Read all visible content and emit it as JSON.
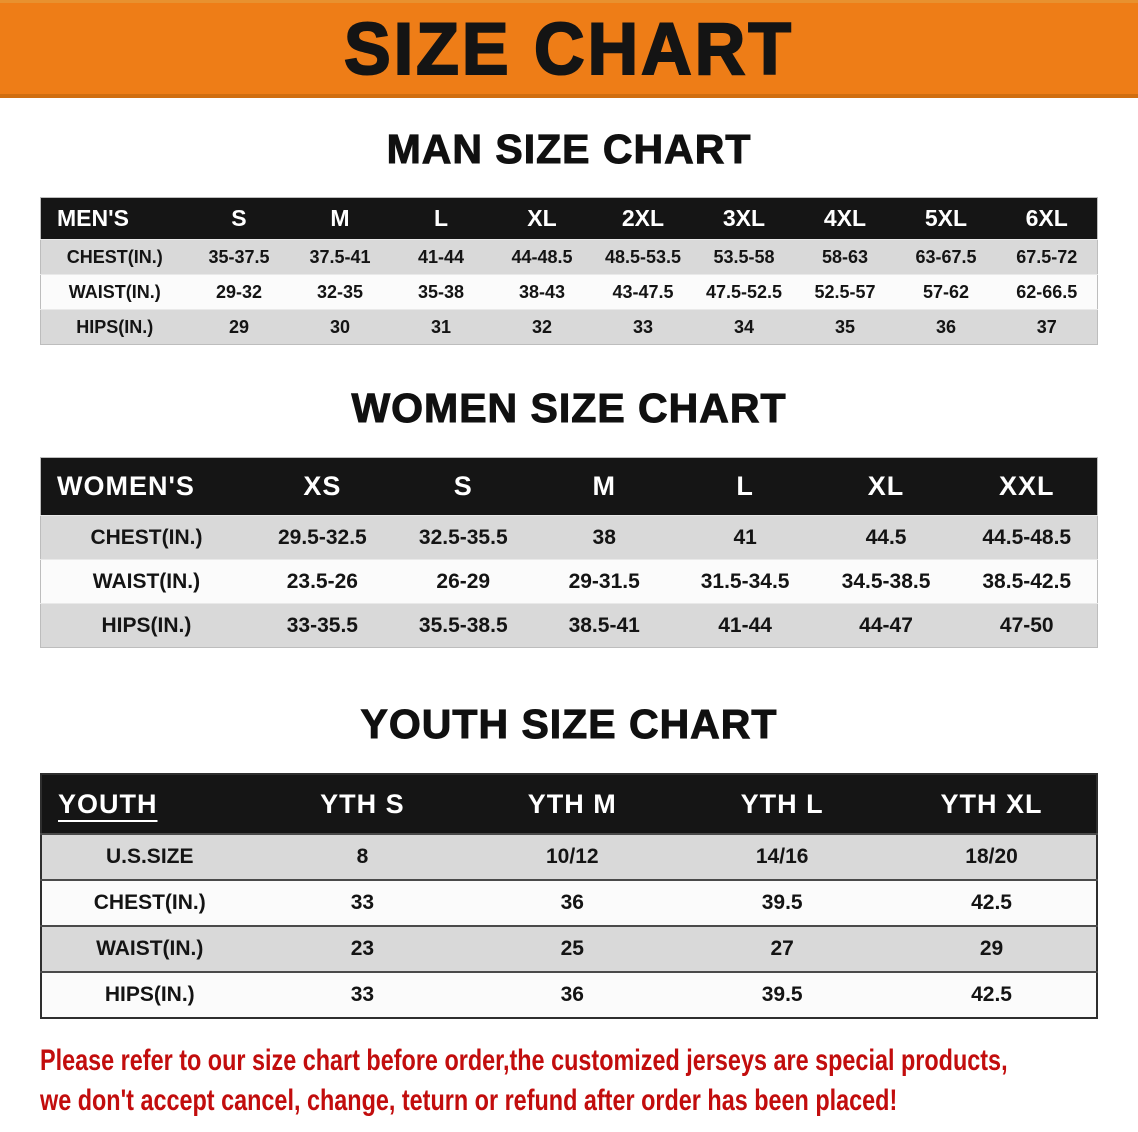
{
  "banner": {
    "title": "SIZE CHART",
    "background_color": "#ee7d17"
  },
  "sections": [
    {
      "heading": "MAN SIZE CHART",
      "table": {
        "header": [
          "MEN'S",
          "S",
          "M",
          "L",
          "XL",
          "2XL",
          "3XL",
          "4XL",
          "5XL",
          "6XL"
        ],
        "rows": [
          [
            "CHEST(IN.)",
            "35-37.5",
            "37.5-41",
            "41-44",
            "44-48.5",
            "48.5-53.5",
            "53.5-58",
            "58-63",
            "63-67.5",
            "67.5-72"
          ],
          [
            "WAIST(IN.)",
            "29-32",
            "32-35",
            "35-38",
            "38-43",
            "43-47.5",
            "47.5-52.5",
            "52.5-57",
            "57-62",
            "62-66.5"
          ],
          [
            "HIPS(IN.)",
            "29",
            "30",
            "31",
            "32",
            "33",
            "34",
            "35",
            "36",
            "37"
          ]
        ]
      }
    },
    {
      "heading": "WOMEN SIZE CHART",
      "table": {
        "header": [
          "WOMEN'S",
          "XS",
          "S",
          "M",
          "L",
          "XL",
          "XXL"
        ],
        "rows": [
          [
            "CHEST(IN.)",
            "29.5-32.5",
            "32.5-35.5",
            "38",
            "41",
            "44.5",
            "44.5-48.5"
          ],
          [
            "WAIST(IN.)",
            "23.5-26",
            "26-29",
            "29-31.5",
            "31.5-34.5",
            "34.5-38.5",
            "38.5-42.5"
          ],
          [
            "HIPS(IN.)",
            "33-35.5",
            "35.5-38.5",
            "38.5-41",
            "41-44",
            "44-47",
            "47-50"
          ]
        ]
      }
    },
    {
      "heading": "YOUTH SIZE CHART",
      "table": {
        "header": [
          "YOUTH",
          "YTH S",
          "YTH M",
          "YTH L",
          "YTH XL"
        ],
        "rows": [
          [
            "U.S.SIZE",
            "8",
            "10/12",
            "14/16",
            "18/20"
          ],
          [
            "CHEST(IN.)",
            "33",
            "36",
            "39.5",
            "42.5"
          ],
          [
            "WAIST(IN.)",
            "23",
            "25",
            "27",
            "29"
          ],
          [
            "HIPS(IN.)",
            "33",
            "36",
            "39.5",
            "42.5"
          ]
        ]
      }
    }
  ],
  "disclaimer": {
    "lines": [
      "Please refer to our size chart before order,the customized jerseys are special products,",
      "we don't accept cancel, change, teturn or refund after order has been placed!"
    ],
    "color": "#c20d0d"
  }
}
